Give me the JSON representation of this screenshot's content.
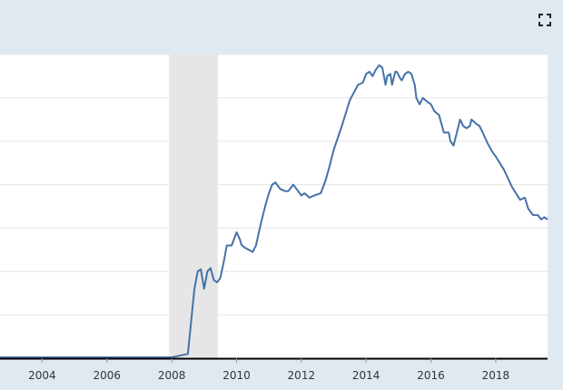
{
  "toolbar": {
    "expand_icon": "fullscreen-expand-icon"
  },
  "colors": {
    "background": "#e1e9f0",
    "plot_area": "#ffffff",
    "grid": "#e6e6e6",
    "line": "#4572a7",
    "recession": "#e6e6e6",
    "axis": "#000000"
  },
  "chart_data": {
    "type": "line",
    "title": "",
    "xlabel": "",
    "ylabel": "",
    "x_ticks": [
      "2004",
      "2006",
      "2008",
      "2010",
      "2012",
      "2014",
      "2016",
      "2018"
    ],
    "xlim": [
      2002.7,
      2019.6
    ],
    "ylim": [
      0,
      7
    ],
    "grid": true,
    "y_tick_labels_visible": false,
    "recession_band": {
      "start": 2007.92,
      "end": 2009.42
    },
    "series": [
      {
        "name": "",
        "x": [
          2002.7,
          2004.0,
          2006.0,
          2008.0,
          2008.5,
          2008.7,
          2008.8,
          2008.9,
          2009.0,
          2009.1,
          2009.2,
          2009.3,
          2009.4,
          2009.5,
          2009.6,
          2009.7,
          2009.85,
          2010.0,
          2010.1,
          2010.15,
          2010.25,
          2010.5,
          2010.6,
          2010.75,
          2010.9,
          2011.0,
          2011.1,
          2011.2,
          2011.35,
          2011.5,
          2011.6,
          2011.75,
          2011.9,
          2012.0,
          2012.1,
          2012.25,
          2012.4,
          2012.6,
          2012.75,
          2012.9,
          2013.0,
          2013.25,
          2013.5,
          2013.75,
          2013.9,
          2014.0,
          2014.1,
          2014.2,
          2014.3,
          2014.4,
          2014.5,
          2014.6,
          2014.65,
          2014.75,
          2014.8,
          2014.9,
          2014.95,
          2015.05,
          2015.1,
          2015.2,
          2015.3,
          2015.4,
          2015.5,
          2015.55,
          2015.65,
          2015.75,
          2015.9,
          2016.0,
          2016.1,
          2016.25,
          2016.4,
          2016.55,
          2016.6,
          2016.7,
          2016.8,
          2016.9,
          2017.0,
          2017.1,
          2017.2,
          2017.25,
          2017.4,
          2017.5,
          2017.6,
          2017.75,
          2017.9,
          2018.0,
          2018.25,
          2018.5,
          2018.75,
          2018.9,
          2019.0,
          2019.15,
          2019.3,
          2019.4,
          2019.5,
          2019.6
        ],
        "y": [
          0.02,
          0.02,
          0.02,
          0.02,
          0.1,
          1.6,
          2.0,
          2.05,
          1.6,
          2.0,
          2.08,
          1.8,
          1.75,
          1.85,
          2.2,
          2.6,
          2.6,
          2.9,
          2.75,
          2.62,
          2.55,
          2.45,
          2.6,
          3.1,
          3.55,
          3.8,
          4.0,
          4.05,
          3.9,
          3.85,
          3.85,
          4.0,
          3.85,
          3.75,
          3.8,
          3.7,
          3.75,
          3.8,
          4.1,
          4.5,
          4.8,
          5.35,
          5.95,
          6.3,
          6.35,
          6.55,
          6.6,
          6.5,
          6.65,
          6.75,
          6.7,
          6.3,
          6.5,
          6.55,
          6.3,
          6.6,
          6.6,
          6.45,
          6.4,
          6.55,
          6.6,
          6.55,
          6.3,
          6.0,
          5.85,
          6.0,
          5.9,
          5.85,
          5.7,
          5.6,
          5.2,
          5.2,
          5.0,
          4.9,
          5.2,
          5.5,
          5.35,
          5.3,
          5.35,
          5.5,
          5.4,
          5.35,
          5.2,
          4.95,
          4.75,
          4.65,
          4.35,
          3.95,
          3.65,
          3.7,
          3.45,
          3.3,
          3.3,
          3.2,
          3.25,
          3.2
        ]
      }
    ]
  }
}
